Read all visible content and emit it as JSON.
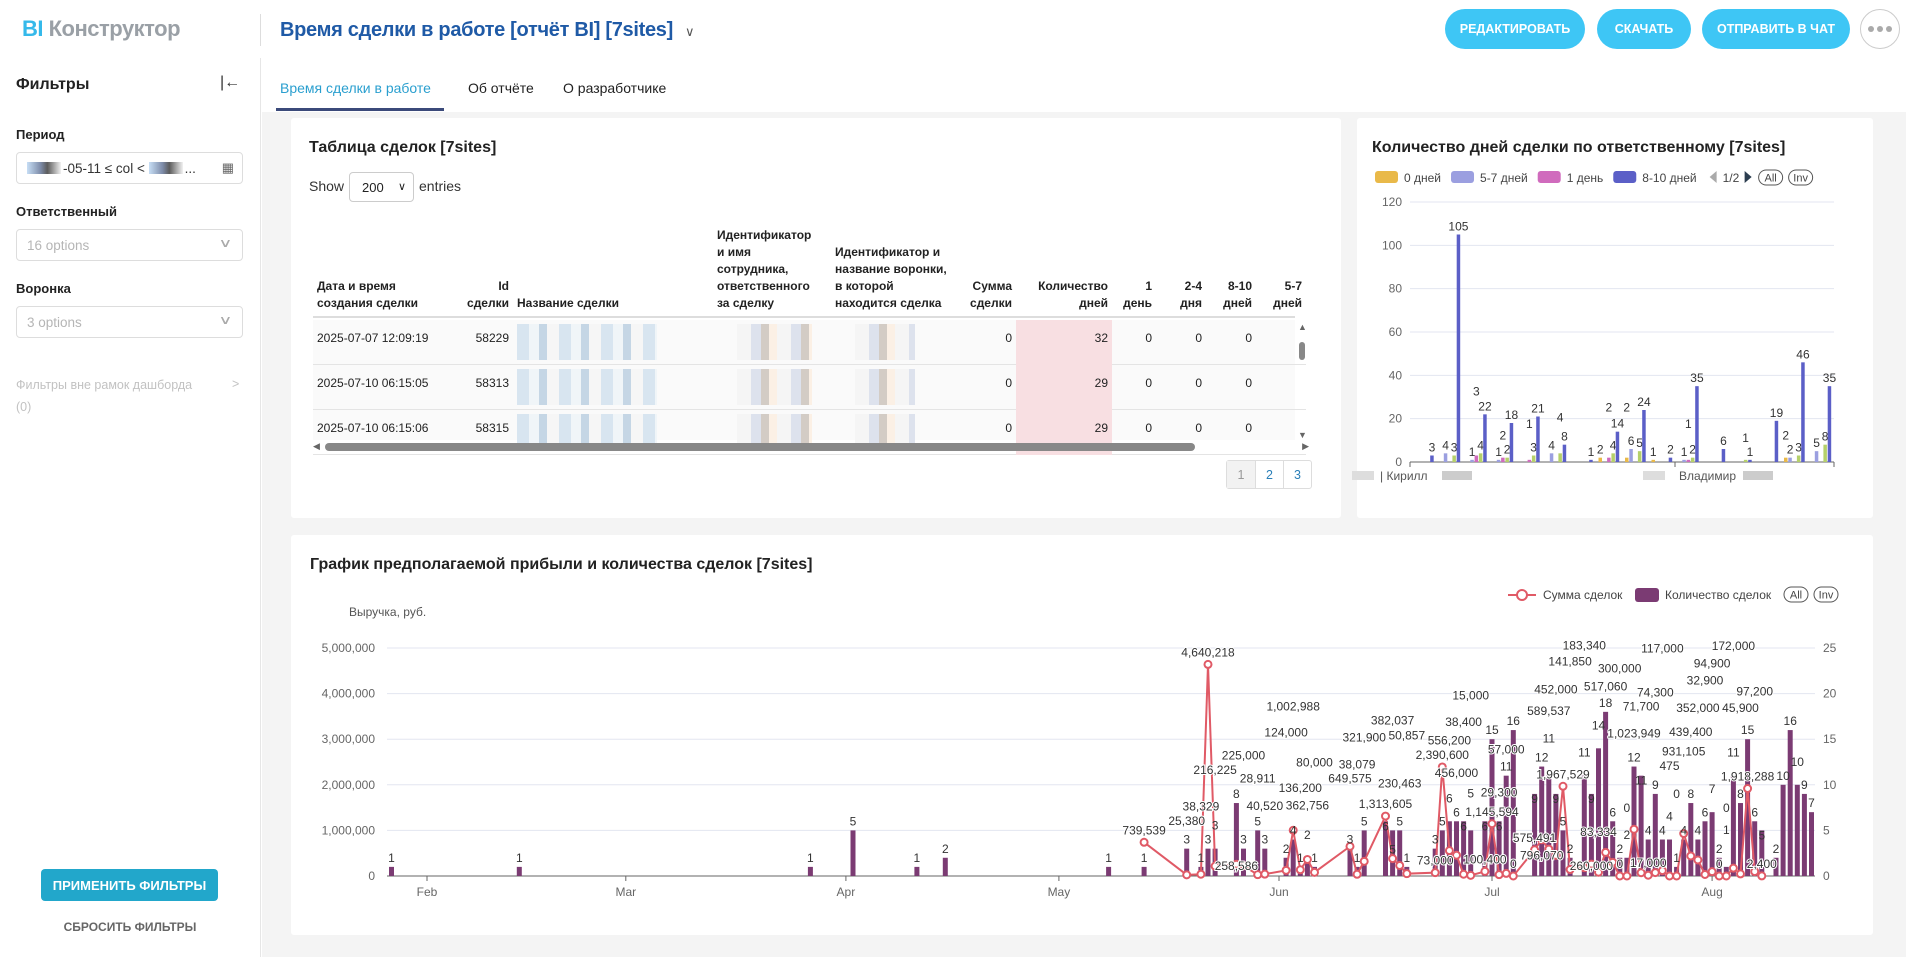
{
  "header": {
    "logo_bi": "BI",
    "logo_rest": "Конструктор",
    "title": "Время сделки в работе [отчёт BI] [7sites]",
    "buttons": {
      "edit": "РЕДАКТИРОВАТЬ",
      "download": "СКАЧАТЬ",
      "send": "ОТПРАВИТЬ В ЧАТ"
    },
    "accent": "#3ec6f5"
  },
  "sidebar": {
    "title": "Фильтры",
    "period": {
      "label": "Период",
      "value_visible": "-05-11 ≤ col <",
      "value_tail": "..."
    },
    "responsible": {
      "label": "Ответственный",
      "placeholder": "16 options"
    },
    "funnel": {
      "label": "Воронка",
      "placeholder": "3 options"
    },
    "outside": {
      "label": "Фильтры вне рамок дашборда",
      "count": "(0)"
    },
    "apply": "ПРИМЕНИТЬ ФИЛЬТРЫ",
    "reset": "СБРОСИТЬ ФИЛЬТРЫ"
  },
  "tabs": [
    {
      "label": "Время сделки в работе",
      "active": true
    },
    {
      "label": "Об отчёте",
      "active": false
    },
    {
      "label": "О разработчике",
      "active": false
    }
  ],
  "table_card": {
    "title": "Таблица сделок [7sites]",
    "show_label": "Show",
    "entries_label": "entries",
    "page_size": "200",
    "columns": [
      "Дата и время создания сделки",
      "Id сделки",
      "Название сделки",
      "Идентификатор и имя сотрудника, ответственного за сделку",
      "Идентификатор и название воронки, в которой находится сделка",
      "Сумма сделки",
      "Количество дней",
      "1 день",
      "2-4 дня",
      "8-10 дней",
      "5-7 дней"
    ],
    "rows": [
      {
        "date": "2025-07-07 12:09:19",
        "id": "58229",
        "sum": "0",
        "days": "32",
        "d1": "0",
        "d24": "0",
        "d810": "0",
        "d57": ""
      },
      {
        "date": "2025-07-10 06:15:05",
        "id": "58313",
        "sum": "0",
        "days": "29",
        "d1": "0",
        "d24": "0",
        "d810": "0",
        "d57": ""
      },
      {
        "date": "2025-07-10 06:15:06",
        "id": "58315",
        "sum": "0",
        "days": "29",
        "d1": "0",
        "d24": "0",
        "d810": "0",
        "d57": ""
      }
    ],
    "pages": [
      "1",
      "2",
      "3"
    ],
    "current_page": "1"
  },
  "chart_data": [
    {
      "type": "bar",
      "title": "Количество дней сделки по ответственному [7sites]",
      "legend": [
        "0 дней",
        "5-7 дней",
        "1 день",
        "8-10 дней"
      ],
      "legend_page": "1/2",
      "legend_buttons": [
        "All",
        "Inv"
      ],
      "legend_placement": "top",
      "series_colors": [
        "#e9b949",
        "#9b9fe0",
        "#d06bbd",
        "#b5d06a",
        "#5b5fc7"
      ],
      "series_order": [
        "0 дней",
        "5-7 дней",
        "1 день",
        "",
        "8-10 дней"
      ],
      "x_labels_visible": [
        "Кирилл",
        "Владимир"
      ],
      "ylim": [
        0,
        120
      ],
      "yticks": [
        0,
        20,
        40,
        60,
        80,
        100,
        120
      ],
      "grid": true,
      "groups": [
        [
          0,
          0,
          0,
          0,
          3
        ],
        [
          0,
          4,
          0,
          3,
          105
        ],
        [
          0,
          1,
          3,
          4,
          22
        ],
        [
          0,
          1,
          2,
          2,
          18
        ],
        [
          0,
          0,
          1,
          3,
          21
        ],
        [
          0,
          4,
          0,
          4,
          8
        ],
        [
          0,
          0,
          0,
          0,
          1
        ],
        [
          2,
          0,
          2,
          4,
          14
        ],
        [
          2,
          6,
          0,
          5,
          24
        ],
        [
          1,
          0,
          0,
          0,
          2
        ],
        [
          0,
          1,
          1,
          2,
          35
        ],
        [
          0,
          0,
          0,
          0,
          6
        ],
        [
          0,
          0,
          0,
          1,
          1
        ],
        [
          0,
          0,
          0,
          0,
          19
        ],
        [
          2,
          2,
          0,
          3,
          46
        ],
        [
          0,
          5,
          0,
          8,
          35
        ]
      ]
    },
    {
      "type": "bar+line",
      "title": "График предполагаемой прибыли и количества сделок [7sites]",
      "ylabel": "Выручка, руб.",
      "legend": [
        {
          "name": "Сумма сделок",
          "kind": "line",
          "color": "#e05a66"
        },
        {
          "name": "Количество сделок",
          "kind": "bar",
          "color": "#7b3b73"
        }
      ],
      "legend_buttons": [
        "All",
        "Inv"
      ],
      "legend_placement": "top-right",
      "y_left": {
        "lim": [
          0,
          5000000
        ],
        "ticks": [
          0,
          1000000,
          2000000,
          3000000,
          4000000,
          5000000
        ]
      },
      "y_right": {
        "lim": [
          0,
          25
        ],
        "ticks": [
          0,
          5,
          10,
          15,
          20,
          25
        ]
      },
      "x_ticks": [
        [
          "2025-02-01",
          "Feb"
        ],
        [
          "2025-03-01",
          "Mar"
        ],
        [
          "2025-04-01",
          "Apr"
        ],
        [
          "2025-05-01",
          "May"
        ],
        [
          "2025-06-01",
          "Jun"
        ],
        [
          "2025-07-01",
          "Jul"
        ],
        [
          "2025-08-01",
          "Aug"
        ]
      ],
      "grid": true,
      "points": [
        [
          "2025-01-27",
          1,
          null
        ],
        [
          "2025-02-14",
          1,
          null
        ],
        [
          "2025-03-27",
          1,
          null
        ],
        [
          "2025-04-02",
          5,
          null
        ],
        [
          "2025-04-11",
          1,
          null
        ],
        [
          "2025-04-15",
          2,
          null
        ],
        [
          "2025-05-08",
          1,
          null
        ],
        [
          "2025-05-13",
          1,
          739539
        ],
        [
          "2025-05-19",
          3,
          25380
        ],
        [
          "2025-05-21",
          1,
          38329
        ],
        [
          "2025-05-22",
          3,
          4640218
        ],
        [
          "2025-05-23",
          3,
          216225
        ],
        [
          "2025-05-26",
          8,
          258586
        ],
        [
          "2025-05-27",
          3,
          225000
        ],
        [
          "2025-05-29",
          5,
          28911
        ],
        [
          "2025-05-30",
          3,
          40520
        ],
        [
          "2025-06-02",
          2,
          124000
        ],
        [
          "2025-06-03",
          4,
          1002988
        ],
        [
          "2025-06-04",
          1,
          136200
        ],
        [
          "2025-06-05",
          2,
          362756
        ],
        [
          "2025-06-06",
          1,
          80000
        ],
        [
          "2025-06-11",
          3,
          649575
        ],
        [
          "2025-06-12",
          1,
          38079
        ],
        [
          "2025-06-13",
          5,
          321900
        ],
        [
          "2025-06-16",
          6,
          1313605
        ],
        [
          "2025-06-17",
          5,
          382037
        ],
        [
          "2025-06-18",
          5,
          230463
        ],
        [
          "2025-06-19",
          1,
          50857
        ],
        [
          "2025-06-23",
          3,
          73000
        ],
        [
          "2025-06-24",
          5,
          2390600
        ],
        [
          "2025-06-25",
          6,
          556200
        ],
        [
          "2025-06-26",
          6,
          456000
        ],
        [
          "2025-06-27",
          6,
          38400
        ],
        [
          "2025-06-28",
          5,
          15000
        ],
        [
          "2025-06-30",
          6,
          100400
        ],
        [
          "2025-07-01",
          15,
          1145594
        ],
        [
          "2025-07-02",
          6,
          29300
        ],
        [
          "2025-07-03",
          11,
          57000
        ],
        [
          "2025-07-04",
          16,
          0
        ],
        [
          "2025-07-07",
          9,
          575491
        ],
        [
          "2025-07-08",
          12,
          796070
        ],
        [
          "2025-07-09",
          11,
          589537
        ],
        [
          "2025-07-10",
          9,
          452000
        ],
        [
          "2025-07-11",
          5,
          1967529
        ],
        [
          "2025-07-12",
          2,
          141850
        ],
        [
          "2025-07-14",
          11,
          183340
        ],
        [
          "2025-07-15",
          9,
          260000
        ],
        [
          "2025-07-16",
          14,
          83334
        ],
        [
          "2025-07-17",
          18,
          517060
        ],
        [
          "2025-07-18",
          6,
          300000
        ],
        [
          "2025-07-19",
          2,
          0
        ],
        [
          "2025-07-20",
          2,
          0
        ],
        [
          "2025-07-21",
          12,
          1023949
        ],
        [
          "2025-07-22",
          11,
          71700
        ],
        [
          "2025-07-23",
          4,
          17000
        ],
        [
          "2025-07-24",
          9,
          74300
        ],
        [
          "2025-07-25",
          4,
          117000
        ],
        [
          "2025-07-26",
          4,
          475
        ],
        [
          "2025-07-27",
          1,
          0
        ],
        [
          "2025-07-28",
          4,
          931105
        ],
        [
          "2025-07-29",
          8,
          439400
        ],
        [
          "2025-07-30",
          4,
          352000
        ],
        [
          "2025-07-31",
          6,
          32900
        ],
        [
          "2025-08-01",
          7,
          94900
        ],
        [
          "2025-08-02",
          2,
          0
        ],
        [
          "2025-08-03",
          1,
          0
        ],
        [
          "2025-08-04",
          11,
          172000
        ],
        [
          "2025-08-05",
          8,
          45900
        ],
        [
          "2025-08-06",
          15,
          1918288
        ],
        [
          "2025-08-07",
          6,
          97200
        ],
        [
          "2025-08-08",
          5,
          2400
        ],
        [
          "2025-08-10",
          2,
          null
        ],
        [
          "2025-08-11",
          10,
          null
        ],
        [
          "2025-08-12",
          16,
          null
        ],
        [
          "2025-08-13",
          10,
          null
        ],
        [
          "2025-08-14",
          9,
          null
        ],
        [
          "2025-08-15",
          7,
          null
        ]
      ]
    }
  ]
}
